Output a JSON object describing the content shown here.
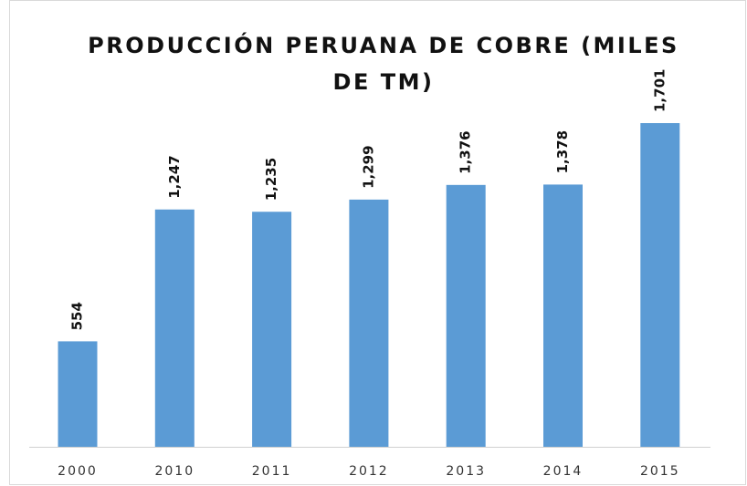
{
  "chart_data": {
    "type": "bar",
    "title": "PRODUCCIÓN PERUANA DE COBRE (MILES DE TM)",
    "categories": [
      "2000",
      "2010",
      "2011",
      "2012",
      "2013",
      "2014",
      "2015"
    ],
    "values": [
      554,
      1247,
      1235,
      1299,
      1376,
      1378,
      1701
    ],
    "value_labels": [
      "554",
      "1,247",
      "1,235",
      "1,299",
      "1,376",
      "1,378",
      "1,701"
    ],
    "color": "#5b9bd5"
  }
}
